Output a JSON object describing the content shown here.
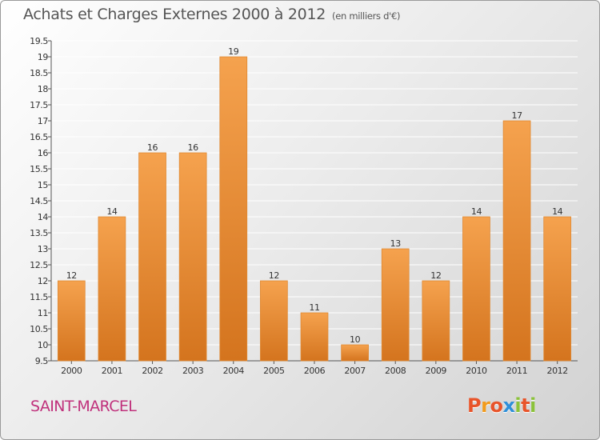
{
  "header": {
    "title": "Achats et Charges Externes 2000 à 2012",
    "subtitle": "(en milliers d'€)"
  },
  "footer": {
    "city": "SAINT-MARCEL",
    "logo": [
      "P",
      "r",
      "o",
      "x",
      "i",
      "t",
      "i"
    ],
    "logo_colors": [
      "#e8542a",
      "#f29b1d",
      "#e8542a",
      "#2f8fd8",
      "#8bc23a",
      "#e8542a",
      "#8bc23a"
    ]
  },
  "colors": {
    "bar_light": "#f5a24e",
    "bar_dark": "#d4741e",
    "axis": "#555555",
    "grid": "#ffffff"
  },
  "chart_data": {
    "type": "bar",
    "title": "Achats et Charges Externes 2000 à 2012",
    "subtitle": "(en milliers d'€)",
    "categories": [
      "2000",
      "2001",
      "2002",
      "2003",
      "2004",
      "2005",
      "2006",
      "2007",
      "2008",
      "2009",
      "2010",
      "2011",
      "2012"
    ],
    "values": [
      12,
      14,
      16,
      16,
      19,
      12,
      11,
      10,
      13,
      12,
      14,
      17,
      14
    ],
    "ylim": [
      9.5,
      19.5
    ],
    "yticks": [
      9.5,
      10,
      10.5,
      11,
      11.5,
      12,
      12.5,
      13,
      13.5,
      14,
      14.5,
      15,
      15.5,
      16,
      16.5,
      17,
      17.5,
      18,
      18.5,
      19,
      19.5
    ],
    "grid": true,
    "xlabel": "",
    "ylabel": ""
  }
}
